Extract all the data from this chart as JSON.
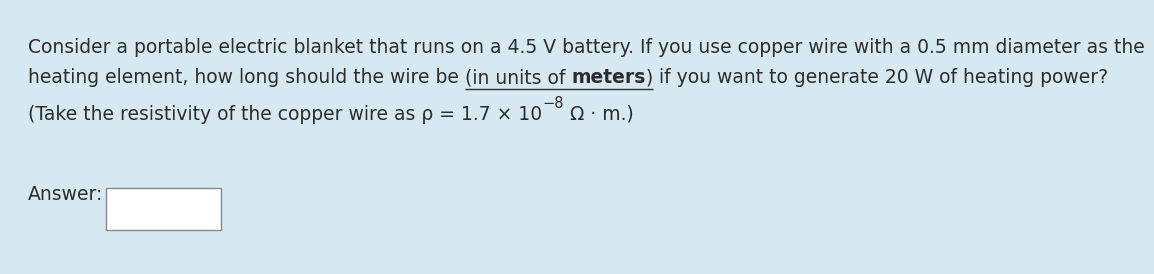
{
  "background_color": "#d6e8f0",
  "line1": "Consider a portable electric blanket that runs on a 4.5 V battery. If you use copper wire with a 0.5 mm diameter as the",
  "line2_normal1": "heating element, how long should the wire be ",
  "line2_underline": "(in units of ",
  "line2_bold_underline": "meters",
  "line2_close": ")",
  "line2_normal2": " if you want to generate 20 W of heating power?",
  "line3": "(Take the resistivity of the copper wire as ρ = 1.7 × 10",
  "line3_exp": "−8",
  "line3_suffix": " Ω · m.)",
  "answer_label": "Answer:",
  "font_size": 13.5,
  "bg": "#d6e8f0"
}
